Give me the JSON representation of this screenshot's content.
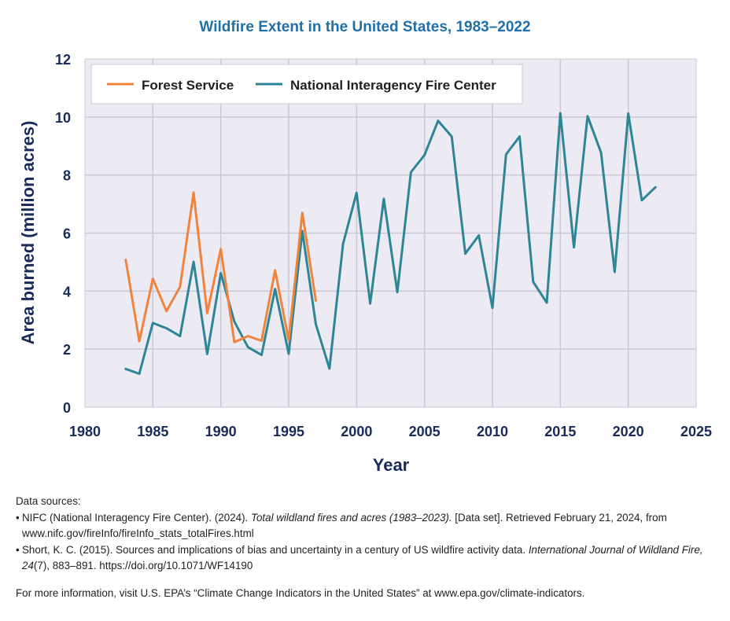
{
  "chart_data": {
    "type": "line",
    "title": "Wildfire Extent in the United States, 1983–2022",
    "xlabel": "Year",
    "ylabel": "Area burned (million acres)",
    "xlim": [
      1980,
      2025
    ],
    "ylim": [
      0,
      12
    ],
    "xticks": [
      1980,
      1985,
      1990,
      1995,
      2000,
      2005,
      2010,
      2015,
      2020,
      2025
    ],
    "yticks": [
      0,
      2,
      4,
      6,
      8,
      10,
      12
    ],
    "grid": true,
    "legend_position": "top-left",
    "series": [
      {
        "name": "Forest Service",
        "color": "#f0843c",
        "x": [
          1983,
          1984,
          1985,
          1986,
          1987,
          1988,
          1989,
          1990,
          1991,
          1992,
          1993,
          1994,
          1995,
          1996,
          1997
        ],
        "y": [
          5.08,
          2.27,
          4.43,
          3.31,
          4.15,
          7.4,
          3.24,
          5.45,
          2.24,
          2.45,
          2.29,
          4.72,
          2.31,
          6.7,
          3.67
        ]
      },
      {
        "name": "National Interagency Fire Center",
        "color": "#2e8595",
        "x": [
          1983,
          1984,
          1985,
          1986,
          1987,
          1988,
          1989,
          1990,
          1991,
          1992,
          1993,
          1994,
          1995,
          1996,
          1997,
          1998,
          1999,
          2000,
          2001,
          2002,
          2003,
          2004,
          2005,
          2006,
          2007,
          2008,
          2009,
          2010,
          2011,
          2012,
          2013,
          2014,
          2015,
          2016,
          2017,
          2018,
          2019,
          2020,
          2021,
          2022
        ],
        "y": [
          1.32,
          1.15,
          2.9,
          2.72,
          2.45,
          5.01,
          1.83,
          4.62,
          2.95,
          2.07,
          1.8,
          4.07,
          1.84,
          6.07,
          2.86,
          1.33,
          5.63,
          7.39,
          3.57,
          7.18,
          3.96,
          8.1,
          8.69,
          9.87,
          9.33,
          5.29,
          5.92,
          3.42,
          8.71,
          9.33,
          4.32,
          3.6,
          10.13,
          5.51,
          10.03,
          8.77,
          4.66,
          10.12,
          7.13,
          7.58
        ]
      }
    ]
  },
  "sources": {
    "heading": "Data sources:",
    "nifc": {
      "bullet": "•",
      "before": "NIFC (National Interagency Fire Center). (2024). ",
      "title": "Total wildland fires and acres (1983–2023).",
      "after": "  [Data set]. Retrieved February 21, 2024, from www.nifc.gov/fireInfo/fireInfo_stats_totalFires.html"
    },
    "short": {
      "bullet": "•",
      "before": "Short, K. C. (2015). Sources and implications of bias and uncertainty in a century of US wildfire activity data. ",
      "journal": "International Journal of Wildland Fire, 24",
      "after": "(7), 883–891. https://doi.org/10.1071/WF14190"
    }
  },
  "more_info": "For more information, visit U.S. EPA’s “Climate Change Indicators in the United States” at www.epa.gov/climate-indicators."
}
